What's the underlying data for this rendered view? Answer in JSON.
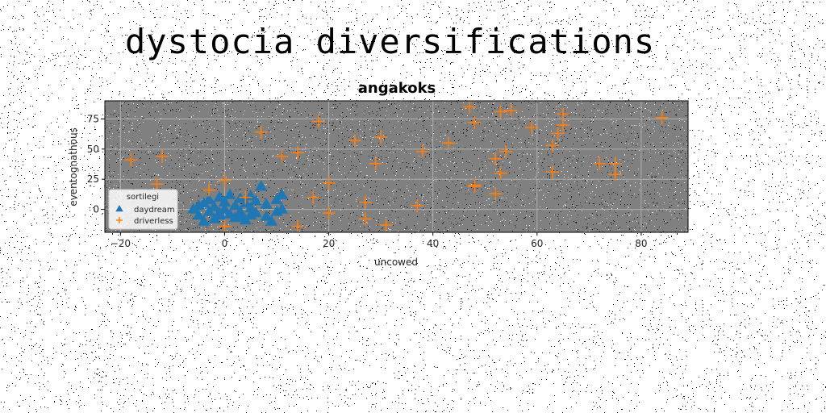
{
  "page": {
    "title": "dystocia diversifications"
  },
  "colors": {
    "plot_background": "#808080",
    "grid": "#b0b0b0",
    "series_daydream": "#1f77b4",
    "series_driverless": "#ff7f0e"
  },
  "chart_data": {
    "type": "scatter",
    "title": "angakoks",
    "xlabel": "uncowed",
    "ylabel": "eventognathous",
    "xlim": [
      -23,
      89
    ],
    "ylim": [
      -19,
      90
    ],
    "xticks": [
      -20,
      0,
      20,
      40,
      60,
      80
    ],
    "yticks": [
      0,
      25,
      50,
      75
    ],
    "xtick_labels": [
      "−20",
      "0",
      "20",
      "40",
      "60",
      "80"
    ],
    "ytick_labels": [
      "0",
      "25",
      "50",
      "75"
    ],
    "grid": true,
    "legend": {
      "title": "sortilegi",
      "position": "lower-left"
    },
    "series": [
      {
        "name": "daydream",
        "marker": "triangle",
        "color": "#1f77b4",
        "points": [
          [
            -6,
            0
          ],
          [
            -5,
            -5
          ],
          [
            -5,
            3
          ],
          [
            -4,
            -10
          ],
          [
            -4,
            5
          ],
          [
            -3,
            -2
          ],
          [
            -3,
            8
          ],
          [
            -2,
            -8
          ],
          [
            -2,
            2
          ],
          [
            -1,
            10
          ],
          [
            -1,
            -5
          ],
          [
            0,
            0
          ],
          [
            0,
            6
          ],
          [
            1,
            -4
          ],
          [
            1,
            12
          ],
          [
            2,
            3
          ],
          [
            2,
            -7
          ],
          [
            3,
            9
          ],
          [
            3,
            -2
          ],
          [
            4,
            5
          ],
          [
            4,
            -9
          ],
          [
            5,
            1
          ],
          [
            5,
            11
          ],
          [
            6,
            -3
          ],
          [
            6,
            7
          ],
          [
            7,
            19
          ],
          [
            8,
            -6
          ],
          [
            8,
            4
          ],
          [
            9,
            -10
          ],
          [
            10,
            -2
          ],
          [
            10,
            8
          ],
          [
            11,
            12
          ],
          [
            11,
            0
          ],
          [
            3,
            -6
          ],
          [
            -1,
            -3
          ],
          [
            5,
            -5
          ]
        ]
      },
      {
        "name": "driverless",
        "marker": "plus",
        "color": "#ff7f0e",
        "points": [
          [
            -18,
            41
          ],
          [
            -13,
            21
          ],
          [
            -12,
            44
          ],
          [
            -3,
            16
          ],
          [
            0,
            24
          ],
          [
            0,
            -14
          ],
          [
            4,
            10
          ],
          [
            7,
            64
          ],
          [
            11,
            44
          ],
          [
            14,
            47
          ],
          [
            14,
            -14
          ],
          [
            17,
            10
          ],
          [
            18,
            73
          ],
          [
            20,
            22
          ],
          [
            20,
            -3
          ],
          [
            25,
            57
          ],
          [
            27,
            6
          ],
          [
            27,
            -8
          ],
          [
            29,
            38
          ],
          [
            30,
            60
          ],
          [
            31,
            -13
          ],
          [
            37,
            3
          ],
          [
            38,
            48
          ],
          [
            43,
            55
          ],
          [
            47,
            85
          ],
          [
            48,
            72
          ],
          [
            48,
            19
          ],
          [
            48,
            20
          ],
          [
            52,
            42
          ],
          [
            52,
            13
          ],
          [
            53,
            81
          ],
          [
            53,
            30
          ],
          [
            54,
            48
          ],
          [
            55,
            82
          ],
          [
            59,
            68
          ],
          [
            63,
            53
          ],
          [
            63,
            31
          ],
          [
            64,
            63
          ],
          [
            65,
            79
          ],
          [
            65,
            70
          ],
          [
            72,
            38
          ],
          [
            75,
            38
          ],
          [
            75,
            29
          ],
          [
            84,
            76
          ]
        ]
      }
    ]
  }
}
